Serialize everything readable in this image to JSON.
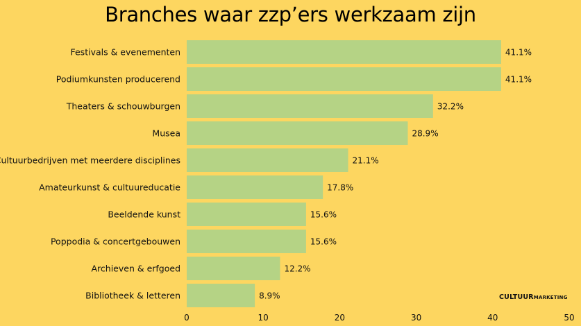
{
  "chart_data": {
    "type": "bar",
    "orientation": "horizontal",
    "title": "Branches waar zzp’ers werkzaam zijn",
    "categories": [
      "Festivals & evenementen",
      "Podiumkunsten producerend",
      "Theaters & schouwburgen",
      "Musea",
      "Cultuurbedrijven met meerdere disciplines",
      "Amateurkunst & cultuureducatie",
      "Beeldende kunst",
      "Poppodia & concertgebouwen",
      "Archieven & erfgoed",
      "Bibliotheek & letteren"
    ],
    "values": [
      41.1,
      41.1,
      32.2,
      28.9,
      21.1,
      17.8,
      15.6,
      15.6,
      12.2,
      8.9
    ],
    "value_labels": [
      "41.1%",
      "41.1%",
      "32.2%",
      "28.9%",
      "21.1%",
      "17.8%",
      "15.6%",
      "15.6%",
      "12.2%",
      "8.9%"
    ],
    "xlim": [
      0,
      50
    ],
    "xticks": [
      0,
      10,
      20,
      30,
      40,
      50
    ],
    "grid": false,
    "legend": "none",
    "bar_color": "#B5D385",
    "background_color": "#FDD660"
  },
  "brand": {
    "part1": "CULTUUR",
    "part2": "MARKETING"
  }
}
